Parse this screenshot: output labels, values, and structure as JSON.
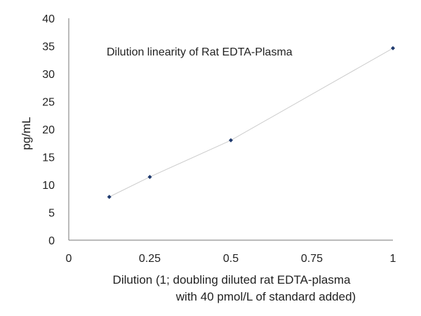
{
  "chart_data": {
    "type": "scatter",
    "title": "Dilution linearity of Rat EDTA-Plasma",
    "xlabel_line1": "Dilution (1; doubling diluted rat EDTA-plasma",
    "xlabel_line2": "with 40 pmol/L of standard added)",
    "ylabel": "pg/mL",
    "xlim": [
      0,
      1
    ],
    "ylim": [
      0,
      40
    ],
    "x_ticks": [
      "0",
      "0.25",
      "0.5",
      "0.75",
      "1"
    ],
    "y_ticks": [
      "0",
      "5",
      "10",
      "15",
      "20",
      "25",
      "30",
      "35",
      "40"
    ],
    "x_tick_values": [
      0,
      0.25,
      0.5,
      0.75,
      1
    ],
    "y_tick_values": [
      0,
      5,
      10,
      15,
      20,
      25,
      30,
      35,
      40
    ],
    "grid": false,
    "trendline": true,
    "series": [
      {
        "x": [
          0.125,
          0.25,
          0.5,
          1
        ],
        "y": [
          7.8,
          11.4,
          18.0,
          34.6
        ]
      }
    ],
    "colors": {
      "marker": "#1f3a6e",
      "trendline": "#cccccc",
      "axis": "#777777"
    }
  }
}
